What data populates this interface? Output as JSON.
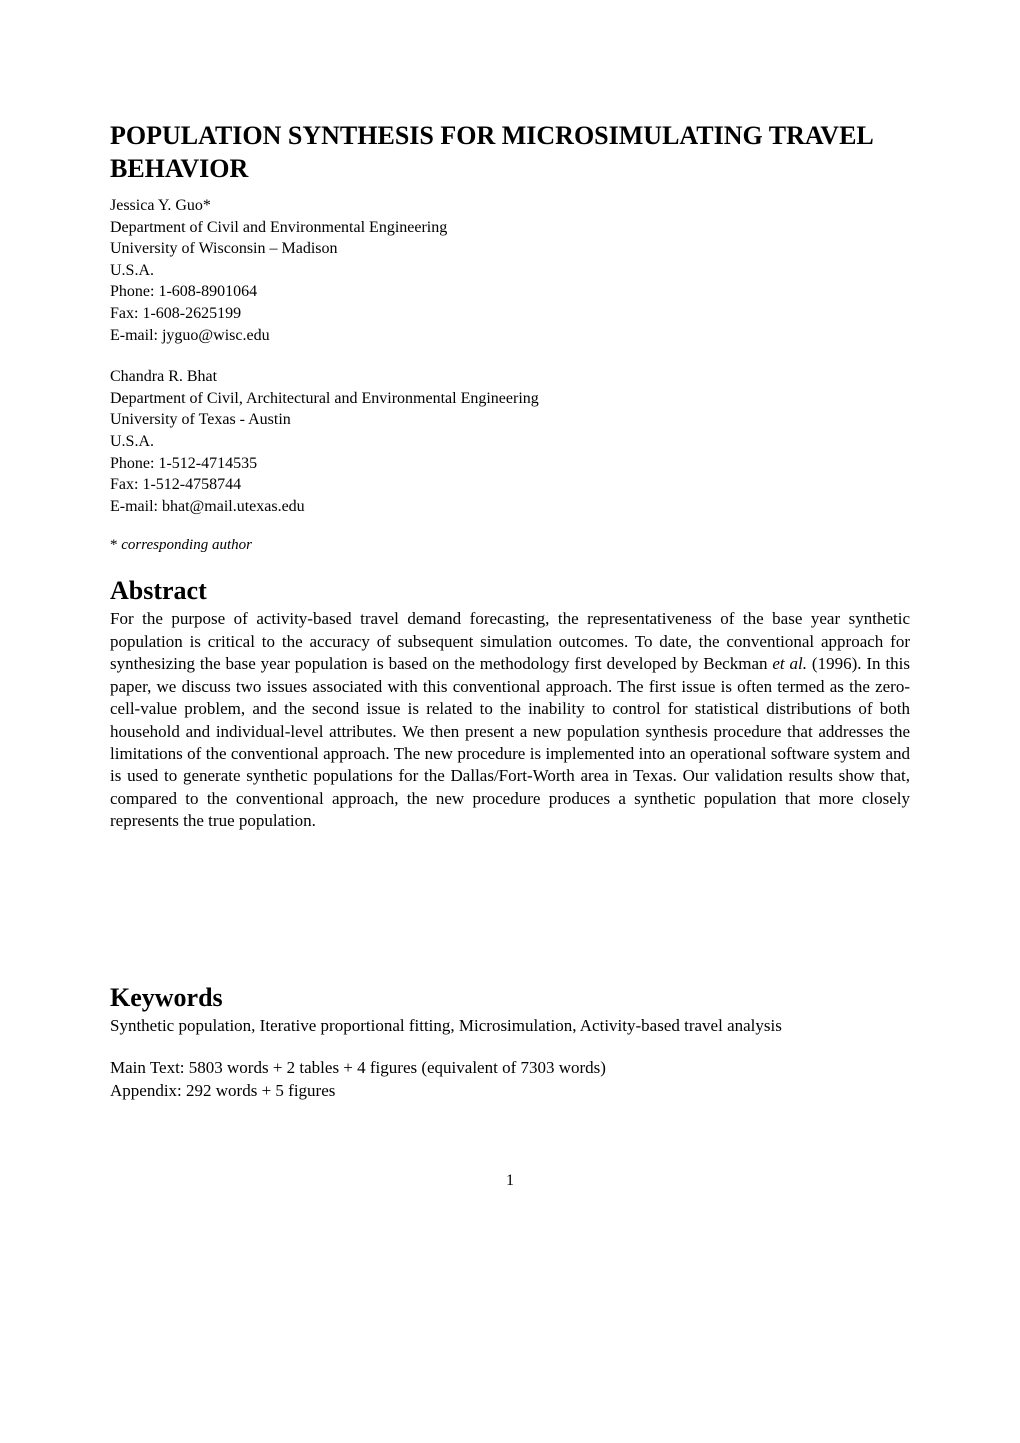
{
  "title": "POPULATION SYNTHESIS FOR MICROSIMULATING TRAVEL BEHAVIOR",
  "authors": [
    {
      "name": "Jessica Y. Guo*",
      "dept": "Department of Civil and Environmental Engineering",
      "univ": "University of Wisconsin – Madison",
      "country": "U.S.A.",
      "phone": "Phone: 1-608-8901064",
      "fax": "Fax: 1-608-2625199",
      "email": "E-mail: jyguo@wisc.edu"
    },
    {
      "name": "Chandra R. Bhat",
      "dept": "Department of Civil, Architectural and Environmental Engineering",
      "univ": "University of Texas - Austin",
      "country": "U.S.A.",
      "phone": "Phone: 1-512-4714535",
      "fax": "Fax: 1-512-4758744",
      "email": "E-mail: bhat@mail.utexas.edu"
    }
  ],
  "corresponding_prefix": "* ",
  "corresponding_text": "corresponding author",
  "abstract_heading": "Abstract",
  "abstract_pre": "For the purpose of activity-based travel demand forecasting, the representativeness of the base year synthetic population is critical to the accuracy of subsequent simulation outcomes.  To date, the conventional approach for synthesizing the base year population is based on the methodology first developed by Beckman ",
  "abstract_italic": "et al.",
  "abstract_post": " (1996).  In this paper, we discuss two issues associated with this conventional approach.  The first issue is often termed as the zero-cell-value problem, and the second issue is related to the inability to control for statistical distributions of both household and individual-level attributes.  We then present a new population synthesis procedure that addresses the limitations of the conventional approach.  The new procedure is implemented into an operational software system and is used to generate synthetic populations for the Dallas/Fort-Worth area in Texas.  Our validation results show that, compared to the conventional approach, the new procedure produces a synthetic population that more closely represents the true population.",
  "keywords_heading": "Keywords",
  "keywords_body": "Synthetic population, Iterative proportional fitting, Microsimulation, Activity-based travel analysis",
  "counts_line1": "Main Text: 5803 words + 2 tables + 4 figures (equivalent of 7303 words)",
  "counts_line2": "Appendix: 292 words + 5 figures",
  "page_number": "1"
}
